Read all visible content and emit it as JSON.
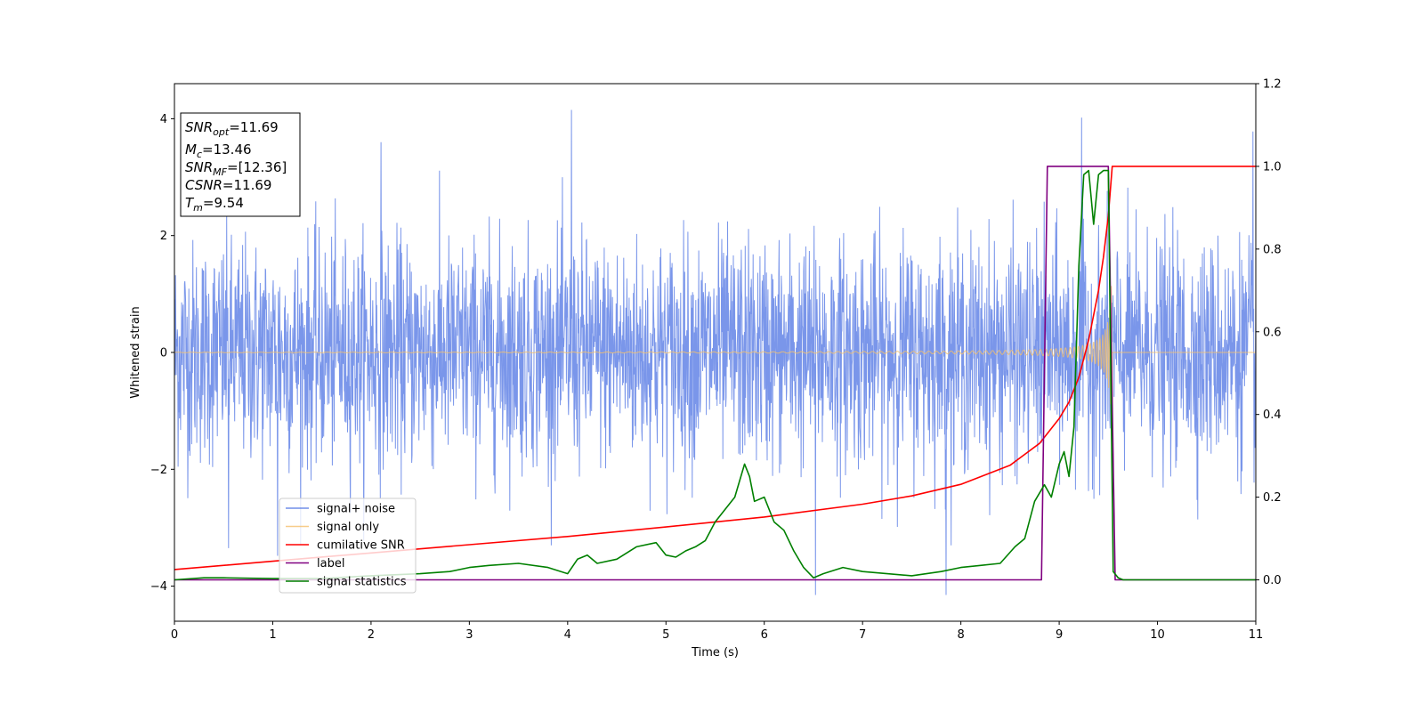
{
  "chart_data": {
    "type": "line",
    "xlabel": "Time (s)",
    "ylabel_left": "Whitened strain",
    "ylabel_right": "",
    "xlim": [
      0,
      11
    ],
    "ylim_left": [
      -4.6,
      4.6
    ],
    "ylim_right": [
      -0.1,
      1.2
    ],
    "xticks": [
      "0",
      "1",
      "2",
      "3",
      "4",
      "5",
      "6",
      "7",
      "8",
      "9",
      "10",
      "11"
    ],
    "yticks_left": [
      "−4",
      "−2",
      "0",
      "2",
      "4"
    ],
    "yticks_right": [
      "0.0",
      "0.2",
      "0.4",
      "0.6",
      "0.8",
      "1.0",
      "1.2"
    ],
    "grid": false,
    "legend_position": "lower-left",
    "info_box": {
      "snr_opt": {
        "main": "SNR",
        "sub": "opt",
        "value": "=11.69"
      },
      "mc": {
        "main": "M",
        "sub": "c",
        "value": "=13.46"
      },
      "snr_mf": {
        "main": "SNR",
        "sub": "MF",
        "value": "=[12.36]"
      },
      "csnr": {
        "main": "CSNR",
        "sub": "",
        "value": "=11.69"
      },
      "tm": {
        "main": "T",
        "sub": "m",
        "value": "=9.54"
      }
    },
    "series": [
      {
        "name": "signal+ noise",
        "axis": "left",
        "color": "#4169e1",
        "style": "noise",
        "x_range": [
          0,
          11
        ],
        "std": 0.95,
        "peaks": [
          [
            4.04,
            4.15
          ],
          [
            9.23,
            4.02
          ],
          [
            10.97,
            3.78
          ],
          [
            2.1,
            3.6
          ],
          [
            6.52,
            -4.15
          ],
          [
            7.85,
            -4.15
          ],
          [
            0.55,
            -3.35
          ],
          [
            1.05,
            -3.48
          ]
        ]
      },
      {
        "name": "signal only",
        "axis": "left",
        "color": "#f5c16c",
        "style": "chirp",
        "t_merge": 9.54,
        "amplitude_peak": 2.25
      },
      {
        "name": "cumilative SNR",
        "axis": "right",
        "color": "#ff0000",
        "x": [
          0,
          1,
          2,
          3,
          4,
          5,
          6,
          7,
          7.5,
          8,
          8.5,
          8.8,
          9.0,
          9.1,
          9.2,
          9.3,
          9.4,
          9.45,
          9.5,
          9.54,
          9.55,
          11
        ],
        "y": [
          0.025,
          0.045,
          0.065,
          0.085,
          0.105,
          0.128,
          0.152,
          0.183,
          0.203,
          0.231,
          0.277,
          0.33,
          0.39,
          0.43,
          0.49,
          0.58,
          0.7,
          0.78,
          0.88,
          1.0,
          1.0,
          1.0
        ]
      },
      {
        "name": "label",
        "axis": "right",
        "color": "#800080",
        "x": [
          0,
          8.82,
          8.88,
          9.5,
          9.57,
          11
        ],
        "y": [
          0,
          0,
          1,
          1,
          0,
          0
        ]
      },
      {
        "name": "signal statistics",
        "axis": "right",
        "color": "#008000",
        "x": [
          0,
          0.3,
          0.5,
          1,
          1.5,
          2,
          2.5,
          2.8,
          3,
          3.2,
          3.5,
          3.8,
          4,
          4.1,
          4.2,
          4.3,
          4.5,
          4.7,
          4.9,
          5,
          5.1,
          5.2,
          5.3,
          5.4,
          5.5,
          5.6,
          5.7,
          5.8,
          5.85,
          5.9,
          6.0,
          6.1,
          6.2,
          6.3,
          6.4,
          6.5,
          6.6,
          6.8,
          7,
          7.5,
          7.8,
          8,
          8.2,
          8.4,
          8.55,
          8.65,
          8.75,
          8.85,
          8.92,
          9.0,
          9.05,
          9.1,
          9.15,
          9.2,
          9.25,
          9.3,
          9.35,
          9.4,
          9.45,
          9.5,
          9.55,
          9.6,
          9.65,
          11
        ],
        "y": [
          0,
          0.005,
          0.005,
          0.003,
          0.003,
          0.01,
          0.015,
          0.02,
          0.03,
          0.035,
          0.04,
          0.03,
          0.015,
          0.05,
          0.06,
          0.04,
          0.05,
          0.08,
          0.09,
          0.06,
          0.055,
          0.07,
          0.08,
          0.095,
          0.14,
          0.17,
          0.2,
          0.28,
          0.25,
          0.19,
          0.2,
          0.14,
          0.12,
          0.07,
          0.03,
          0.005,
          0.015,
          0.03,
          0.02,
          0.01,
          0.02,
          0.03,
          0.035,
          0.04,
          0.08,
          0.1,
          0.19,
          0.23,
          0.2,
          0.28,
          0.31,
          0.25,
          0.37,
          0.76,
          0.98,
          0.99,
          0.86,
          0.98,
          0.99,
          0.99,
          0.02,
          0.005,
          0,
          0
        ]
      }
    ]
  }
}
